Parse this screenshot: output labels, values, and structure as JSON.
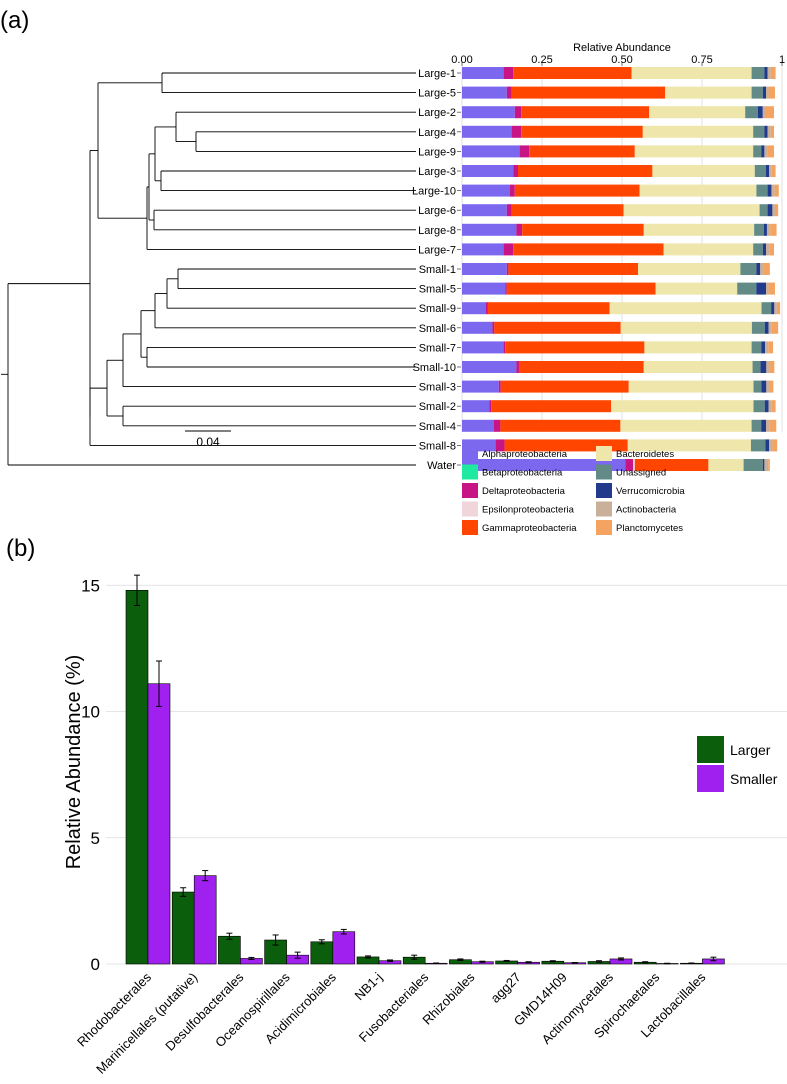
{
  "panels": {
    "a": {
      "label": "(a)"
    },
    "b": {
      "label": "(b)"
    }
  },
  "tree": {
    "scale_label": "0.04"
  },
  "chart_data": [
    {
      "type": "bar",
      "orientation": "horizontal-stacked",
      "title": "Relative Abundance",
      "xlim": [
        0,
        1
      ],
      "ticks": [
        {
          "value": 0,
          "label": "0.00"
        },
        {
          "value": 0.25,
          "label": "0.25"
        },
        {
          "value": 0.5,
          "label": "0.50"
        },
        {
          "value": 0.75,
          "label": "0.75"
        },
        {
          "value": 1,
          "label": "1"
        }
      ],
      "grid": true,
      "legend_placement": "bottom",
      "categories": [
        "Large-1",
        "Large-5",
        "Large-2",
        "Large-4",
        "Large-9",
        "Large-3",
        "Large-10",
        "Large-6",
        "Large-8",
        "Large-7",
        "Small-1",
        "Small-5",
        "Small-9",
        "Small-6",
        "Small-7",
        "Small-10",
        "Small-3",
        "Small-2",
        "Small-4",
        "Small-8",
        "Water"
      ],
      "series": [
        {
          "name": "Alphaproteobacteria",
          "color": "#7b68ee",
          "values": [
            0.13,
            0.14,
            0.165,
            0.155,
            0.18,
            0.16,
            0.15,
            0.14,
            0.17,
            0.13,
            0.14,
            0.135,
            0.075,
            0.095,
            0.13,
            0.17,
            0.115,
            0.085,
            0.1,
            0.105,
            0.51
          ]
        },
        {
          "name": "Betaproteobacteria",
          "color": "#1de9a0",
          "values": [
            0,
            0,
            0,
            0,
            0,
            0,
            0,
            0,
            0,
            0,
            0,
            0,
            0,
            0,
            0,
            0,
            0,
            0,
            0,
            0,
            0
          ]
        },
        {
          "name": "Deltaproteobacteria",
          "color": "#c71585",
          "values": [
            0.03,
            0.015,
            0.02,
            0.03,
            0.03,
            0.015,
            0.015,
            0.015,
            0.018,
            0.03,
            0.005,
            0.005,
            0.006,
            0.006,
            0.005,
            0.008,
            0.006,
            0.006,
            0.02,
            0.028,
            0.025
          ]
        },
        {
          "name": "Epsilonproteobacteria",
          "color": "#f0d6da",
          "values": [
            0,
            0,
            0,
            0,
            0,
            0,
            0,
            0,
            0,
            0,
            0,
            0,
            0,
            0,
            0,
            0,
            0,
            0,
            0,
            0,
            0.005
          ]
        },
        {
          "name": "Gammaproteobacteria",
          "color": "#ff4500",
          "values": [
            0.37,
            0.48,
            0.4,
            0.38,
            0.33,
            0.42,
            0.39,
            0.35,
            0.38,
            0.47,
            0.405,
            0.465,
            0.38,
            0.395,
            0.435,
            0.39,
            0.4,
            0.375,
            0.375,
            0.385,
            0.23
          ]
        },
        {
          "name": "Bacteroidetes",
          "color": "#eee6aa",
          "values": [
            0.375,
            0.27,
            0.3,
            0.345,
            0.37,
            0.32,
            0.365,
            0.425,
            0.345,
            0.28,
            0.32,
            0.255,
            0.475,
            0.41,
            0.335,
            0.34,
            0.39,
            0.445,
            0.41,
            0.385,
            0.11
          ]
        },
        {
          "name": "Unassigned",
          "color": "#628a87",
          "values": [
            0.04,
            0.035,
            0.04,
            0.035,
            0.025,
            0.035,
            0.035,
            0.025,
            0.03,
            0.03,
            0.05,
            0.06,
            0.03,
            0.04,
            0.03,
            0.025,
            0.025,
            0.035,
            0.03,
            0.045,
            0.06
          ]
        },
        {
          "name": "Verrucomicrobia",
          "color": "#223a8c",
          "values": [
            0.01,
            0.01,
            0.015,
            0.01,
            0.01,
            0.01,
            0.012,
            0.015,
            0.01,
            0.01,
            0.012,
            0.03,
            0.01,
            0.012,
            0.012,
            0.018,
            0.015,
            0.012,
            0.015,
            0.012,
            0.005
          ]
        },
        {
          "name": "Actinobacteria",
          "color": "#c8b09a",
          "values": [
            0.01,
            0.008,
            0.01,
            0.01,
            0.01,
            0.008,
            0.01,
            0.008,
            0.01,
            0.01,
            0.01,
            0.008,
            0.008,
            0.01,
            0.01,
            0.01,
            0.01,
            0.01,
            0.012,
            0.01,
            0.012
          ]
        },
        {
          "name": "Planctomycetes",
          "color": "#f4a460",
          "values": [
            0.015,
            0.02,
            0.025,
            0.01,
            0.02,
            0.012,
            0.013,
            0.01,
            0.02,
            0.015,
            0.02,
            0.02,
            0.01,
            0.02,
            0.015,
            0.015,
            0.012,
            0.012,
            0.02,
            0.015,
            0.005
          ]
        }
      ]
    },
    {
      "type": "bar",
      "ylabel": "Relative Abundance (%)",
      "ylim": [
        0,
        16
      ],
      "yticks": [
        0,
        5,
        10,
        15
      ],
      "grid": true,
      "legend_placement": "right",
      "categories": [
        "Rhodobacterales",
        "Marinicellales (putative)",
        "Desulfobacterales",
        "Oceanospirillales",
        "Acidimicrobiales",
        "NB1-j",
        "Fusobacteriales",
        "Rhizobiales",
        "agg27",
        "GMD14H09",
        "Actinomycetales",
        "Spirochaetales",
        "Lactobacillales"
      ],
      "series": [
        {
          "name": "Larger",
          "color": "#0b5e0b",
          "values": [
            14.8,
            2.85,
            1.1,
            0.95,
            0.88,
            0.28,
            0.27,
            0.17,
            0.12,
            0.11,
            0.1,
            0.07,
            0.03
          ],
          "errors": [
            0.6,
            0.17,
            0.12,
            0.2,
            0.08,
            0.04,
            0.08,
            0.03,
            0.02,
            0.02,
            0.03,
            0.02,
            0.01
          ]
        },
        {
          "name": "Smaller",
          "color": "#a020f0",
          "values": [
            11.1,
            3.5,
            0.22,
            0.35,
            1.28,
            0.13,
            0.03,
            0.09,
            0.07,
            0.05,
            0.2,
            0.02,
            0.2
          ],
          "errors": [
            0.9,
            0.2,
            0.04,
            0.12,
            0.09,
            0.03,
            0.01,
            0.02,
            0.02,
            0.01,
            0.04,
            0.01,
            0.07
          ]
        }
      ]
    }
  ]
}
